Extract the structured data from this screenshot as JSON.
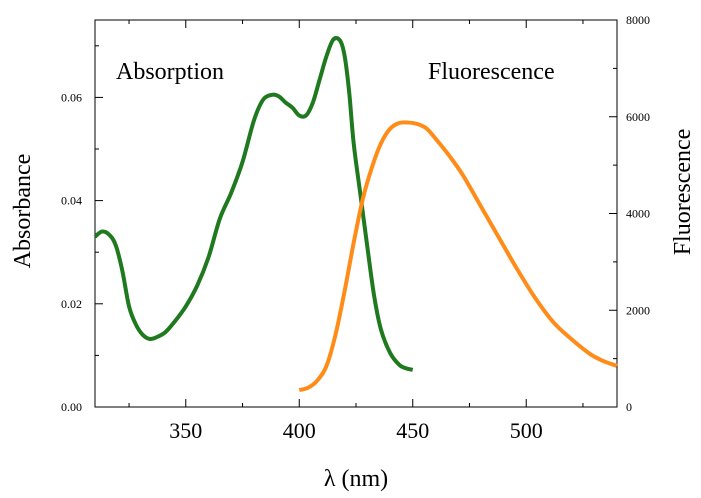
{
  "chart_data": {
    "type": "line",
    "xlabel": "λ (nm)",
    "ylabel_left": "Absorbance",
    "ylabel_right": "Fluorescence",
    "xlim": [
      310,
      540
    ],
    "ylim_left": [
      0,
      0.075
    ],
    "ylim_right": [
      0,
      8000
    ],
    "x_ticks": [
      350,
      400,
      450,
      500
    ],
    "x_tick_labels": [
      "350",
      "400",
      "450",
      "500"
    ],
    "y_left_ticks": [
      0,
      0.02,
      0.04,
      0.06
    ],
    "y_left_tick_labels": [
      "0.00",
      "0.02",
      "0.04",
      "0.06"
    ],
    "y_right_ticks": [
      0,
      2000,
      4000,
      6000,
      8000
    ],
    "y_right_tick_labels": [
      "0",
      "2000",
      "4000",
      "6000",
      "8000"
    ],
    "grid": false,
    "annotations": [
      "Absorption",
      "Fluorescence"
    ],
    "series": [
      {
        "axis": "left",
        "color": "#1f7a1f",
        "x": [
          310,
          313,
          316,
          319,
          322,
          325,
          328,
          331,
          334,
          337,
          341,
          345,
          350,
          355,
          360,
          365,
          370,
          375,
          380,
          384,
          388,
          391,
          394,
          397,
          400,
          403,
          406,
          409,
          412,
          415,
          418,
          420,
          422,
          424,
          427,
          430,
          433,
          436,
          440,
          444,
          447,
          450
        ],
        "y": [
          0.033,
          0.034,
          0.0335,
          0.0315,
          0.0265,
          0.0195,
          0.016,
          0.014,
          0.0132,
          0.0135,
          0.0145,
          0.0165,
          0.0195,
          0.0235,
          0.029,
          0.0365,
          0.0415,
          0.0475,
          0.0555,
          0.0595,
          0.0605,
          0.0602,
          0.059,
          0.058,
          0.0565,
          0.0565,
          0.059,
          0.0635,
          0.068,
          0.0712,
          0.071,
          0.068,
          0.061,
          0.051,
          0.041,
          0.031,
          0.0215,
          0.015,
          0.0105,
          0.0082,
          0.0075,
          0.0072
        ]
      },
      {
        "axis": "right",
        "color": "#ff8c19",
        "x": [
          400,
          404,
          408,
          412,
          416,
          420,
          424,
          428,
          432,
          436,
          440,
          444,
          448,
          452,
          456,
          460,
          466,
          472,
          480,
          488,
          496,
          504,
          512,
          520,
          528,
          534,
          540
        ],
        "y": [
          350,
          400,
          550,
          850,
          1500,
          2400,
          3400,
          4300,
          4950,
          5450,
          5750,
          5870,
          5880,
          5850,
          5760,
          5550,
          5200,
          4800,
          4150,
          3500,
          2850,
          2250,
          1750,
          1400,
          1100,
          950,
          850
        ]
      }
    ]
  }
}
